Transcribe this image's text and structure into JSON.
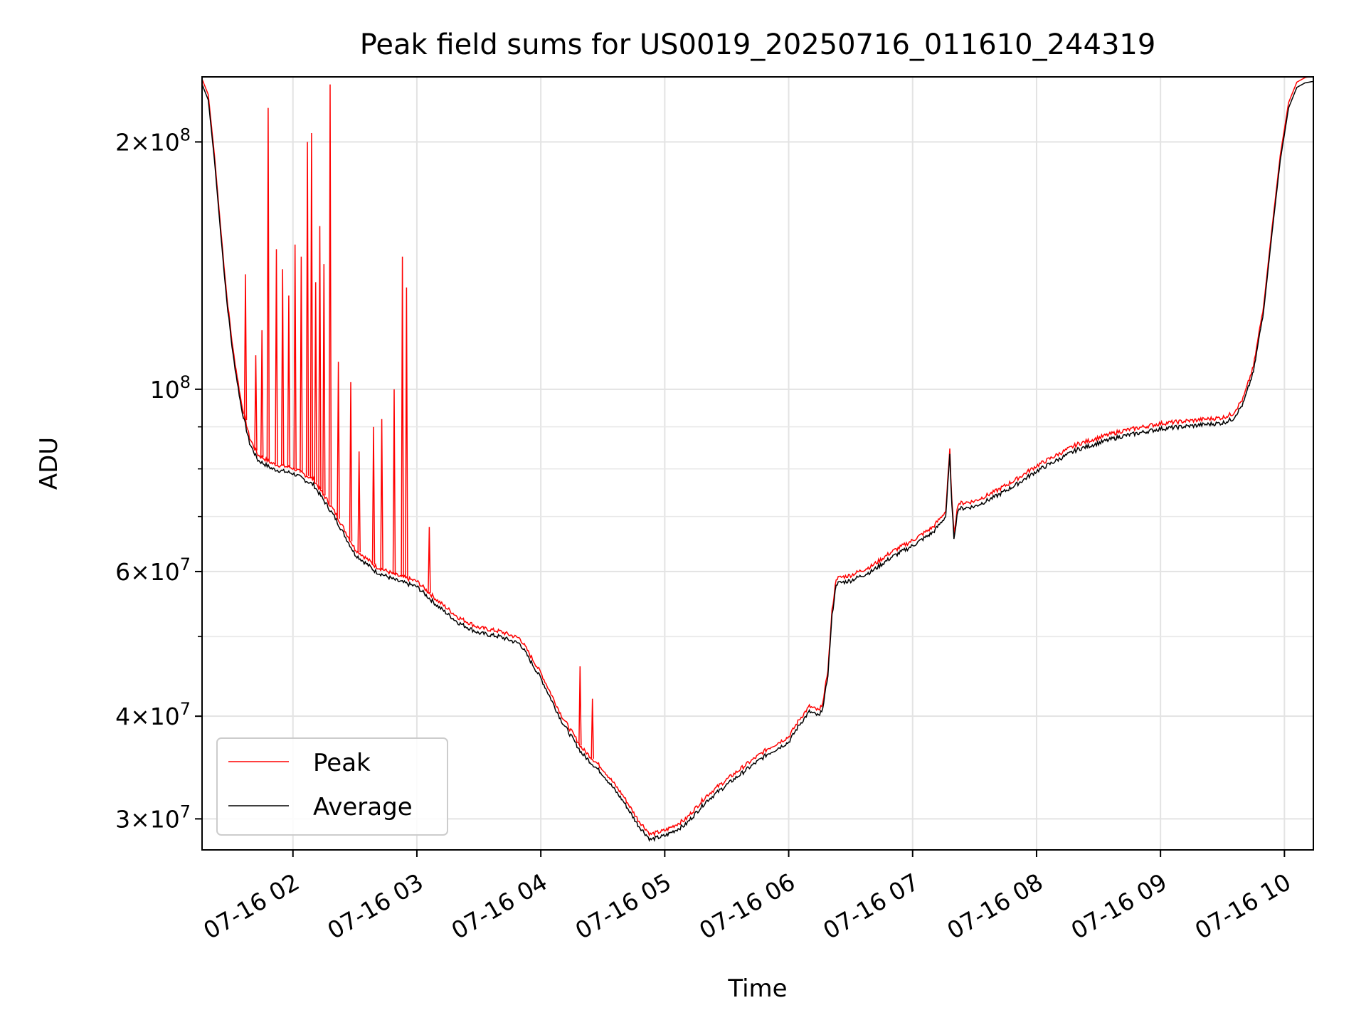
{
  "chart_data": {
    "type": "line",
    "title": "Peak field sums for US0019_20250716_011610_244319",
    "xlabel": "Time",
    "ylabel": "ADU",
    "yscale": "log",
    "xlim": [
      "2025-07-16 01:16",
      "2025-07-16 10:14"
    ],
    "ylim": [
      27500000,
      240000000
    ],
    "x_ticks": [
      "07-16 02",
      "07-16 03",
      "07-16 04",
      "07-16 05",
      "07-16 06",
      "07-16 07",
      "07-16 08",
      "07-16 09",
      "07-16 10"
    ],
    "y_ticks": [
      {
        "value": 30000000,
        "base": "3",
        "exp": "7"
      },
      {
        "value": 40000000,
        "base": "4",
        "exp": "7"
      },
      {
        "value": 60000000,
        "base": "6",
        "exp": "7"
      },
      {
        "value": 100000000,
        "base": "",
        "exp": "8"
      },
      {
        "value": 200000000,
        "base": "2",
        "exp": "8"
      }
    ],
    "grid": true,
    "legend": {
      "position": "lower-left",
      "entries": [
        "Peak",
        "Average"
      ]
    },
    "series": [
      {
        "name": "Average",
        "color": "#000000",
        "points": [
          [
            "2025-07-16 01:16",
            235000000
          ],
          [
            "2025-07-16 01:19",
            225000000
          ],
          [
            "2025-07-16 01:22",
            190000000
          ],
          [
            "2025-07-16 01:25",
            155000000
          ],
          [
            "2025-07-16 01:28",
            128000000
          ],
          [
            "2025-07-16 01:31",
            110000000
          ],
          [
            "2025-07-16 01:35",
            95000000
          ],
          [
            "2025-07-16 01:39",
            86000000
          ],
          [
            "2025-07-16 01:43",
            82000000
          ],
          [
            "2025-07-16 01:50",
            80000000
          ],
          [
            "2025-07-16 02:00",
            79000000
          ],
          [
            "2025-07-16 02:10",
            76500000
          ],
          [
            "2025-07-16 02:20",
            70000000
          ],
          [
            "2025-07-16 02:30",
            63000000
          ],
          [
            "2025-07-16 02:40",
            60000000
          ],
          [
            "2025-07-16 02:50",
            58500000
          ],
          [
            "2025-07-16 03:00",
            57500000
          ],
          [
            "2025-07-16 03:10",
            54500000
          ],
          [
            "2025-07-16 03:20",
            52000000
          ],
          [
            "2025-07-16 03:30",
            50500000
          ],
          [
            "2025-07-16 03:40",
            50000000
          ],
          [
            "2025-07-16 03:50",
            49000000
          ],
          [
            "2025-07-16 04:00",
            44500000
          ],
          [
            "2025-07-16 04:10",
            39500000
          ],
          [
            "2025-07-16 04:20",
            36000000
          ],
          [
            "2025-07-16 04:30",
            34000000
          ],
          [
            "2025-07-16 04:40",
            31500000
          ],
          [
            "2025-07-16 04:47",
            29500000
          ],
          [
            "2025-07-16 04:53",
            28300000
          ],
          [
            "2025-07-16 05:00",
            28600000
          ],
          [
            "2025-07-16 05:10",
            29500000
          ],
          [
            "2025-07-16 05:20",
            31500000
          ],
          [
            "2025-07-16 05:30",
            33000000
          ],
          [
            "2025-07-16 05:40",
            34500000
          ],
          [
            "2025-07-16 05:50",
            36000000
          ],
          [
            "2025-07-16 06:00",
            37200000
          ],
          [
            "2025-07-16 06:05",
            39000000
          ],
          [
            "2025-07-16 06:10",
            40500000
          ],
          [
            "2025-07-16 06:15",
            40000000
          ],
          [
            "2025-07-16 06:17",
            41500000
          ],
          [
            "2025-07-16 06:19",
            45000000
          ],
          [
            "2025-07-16 06:21",
            53000000
          ],
          [
            "2025-07-16 06:23",
            58000000
          ],
          [
            "2025-07-16 06:30",
            58500000
          ],
          [
            "2025-07-16 06:40",
            60000000
          ],
          [
            "2025-07-16 06:50",
            62500000
          ],
          [
            "2025-07-16 07:00",
            64500000
          ],
          [
            "2025-07-16 07:10",
            67000000
          ],
          [
            "2025-07-16 07:16",
            70000000
          ],
          [
            "2025-07-16 07:18",
            83000000
          ],
          [
            "2025-07-16 07:19",
            72000000
          ],
          [
            "2025-07-16 07:20",
            66000000
          ],
          [
            "2025-07-16 07:22",
            71500000
          ],
          [
            "2025-07-16 07:30",
            72000000
          ],
          [
            "2025-07-16 07:40",
            74000000
          ],
          [
            "2025-07-16 07:50",
            76500000
          ],
          [
            "2025-07-16 08:00",
            79500000
          ],
          [
            "2025-07-16 08:10",
            82000000
          ],
          [
            "2025-07-16 08:20",
            84500000
          ],
          [
            "2025-07-16 08:30",
            86000000
          ],
          [
            "2025-07-16 08:40",
            87500000
          ],
          [
            "2025-07-16 08:50",
            88500000
          ],
          [
            "2025-07-16 09:00",
            89500000
          ],
          [
            "2025-07-16 09:10",
            90000000
          ],
          [
            "2025-07-16 09:20",
            90500000
          ],
          [
            "2025-07-16 09:30",
            91000000
          ],
          [
            "2025-07-16 09:35",
            92000000
          ],
          [
            "2025-07-16 09:40",
            96000000
          ],
          [
            "2025-07-16 09:45",
            105000000
          ],
          [
            "2025-07-16 09:50",
            125000000
          ],
          [
            "2025-07-16 09:54",
            155000000
          ],
          [
            "2025-07-16 09:58",
            190000000
          ],
          [
            "2025-07-16 10:02",
            220000000
          ],
          [
            "2025-07-16 10:06",
            233000000
          ],
          [
            "2025-07-16 10:10",
            236000000
          ],
          [
            "2025-07-16 10:14",
            237000000
          ]
        ]
      },
      {
        "name": "Peak",
        "color": "#ff0000",
        "offset_ratio": 1.015,
        "spikes": [
          [
            "2025-07-16 01:37",
            138000000
          ],
          [
            "2025-07-16 01:42",
            110000000
          ],
          [
            "2025-07-16 01:45",
            118000000
          ],
          [
            "2025-07-16 01:48",
            220000000
          ],
          [
            "2025-07-16 01:52",
            148000000
          ],
          [
            "2025-07-16 01:55",
            140000000
          ],
          [
            "2025-07-16 01:58",
            130000000
          ],
          [
            "2025-07-16 02:01",
            150000000
          ],
          [
            "2025-07-16 02:04",
            145000000
          ],
          [
            "2025-07-16 02:07",
            200000000
          ],
          [
            "2025-07-16 02:09",
            205000000
          ],
          [
            "2025-07-16 02:11",
            135000000
          ],
          [
            "2025-07-16 02:13",
            158000000
          ],
          [
            "2025-07-16 02:15",
            142000000
          ],
          [
            "2025-07-16 02:18",
            235000000
          ],
          [
            "2025-07-16 02:22",
            108000000
          ],
          [
            "2025-07-16 02:28",
            102000000
          ],
          [
            "2025-07-16 02:32",
            84000000
          ],
          [
            "2025-07-16 02:39",
            90000000
          ],
          [
            "2025-07-16 02:43",
            92000000
          ],
          [
            "2025-07-16 02:49",
            100000000
          ],
          [
            "2025-07-16 02:53",
            145000000
          ],
          [
            "2025-07-16 02:55",
            133000000
          ],
          [
            "2025-07-16 03:06",
            68000000
          ],
          [
            "2025-07-16 04:19",
            46000000
          ],
          [
            "2025-07-16 04:25",
            42000000
          ]
        ]
      }
    ]
  }
}
